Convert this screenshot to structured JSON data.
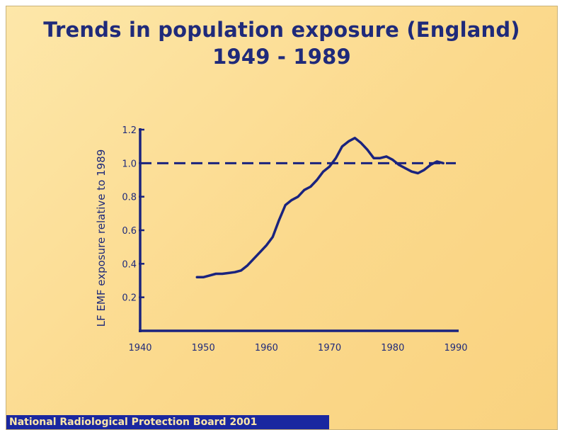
{
  "slide": {
    "title_line1": "Trends in population exposure (England)",
    "title_line2": "1949 - 1989",
    "footer": "National Radiological Protection Board 2001"
  },
  "chart_data": {
    "type": "line",
    "title": "Trends in population exposure (England) 1949 - 1989",
    "xlabel": "",
    "ylabel": "LF EMF exposure relative to 1989",
    "xlim": [
      1940,
      1990
    ],
    "ylim": [
      0,
      1.2
    ],
    "xticks": [
      1940,
      1950,
      1960,
      1970,
      1980,
      1990
    ],
    "yticks": [
      0.2,
      0.4,
      0.6,
      0.8,
      1.0,
      1.2
    ],
    "ytick_labels": [
      "0.2",
      "0.4",
      "0.6",
      "0.8",
      "1.0",
      "1.2"
    ],
    "reference_line": {
      "y": 1.0,
      "style": "dashed"
    },
    "grid": false,
    "legend": "none",
    "colors": {
      "line": "#1a237e",
      "text": "#1f2a7a",
      "background": "#fbd98c"
    },
    "series": [
      {
        "x": [
          1949,
          1950,
          1951,
          1952,
          1953,
          1954,
          1955,
          1956,
          1957,
          1958,
          1959,
          1960,
          1961,
          1962,
          1963,
          1964,
          1965,
          1966,
          1967,
          1968,
          1969,
          1970,
          1971,
          1972,
          1973,
          1974,
          1975,
          1976,
          1977,
          1978,
          1979,
          1980,
          1981,
          1982,
          1983,
          1984,
          1985,
          1986,
          1987,
          1988
        ],
        "values": [
          0.32,
          0.32,
          0.33,
          0.34,
          0.34,
          0.345,
          0.35,
          0.36,
          0.39,
          0.43,
          0.47,
          0.51,
          0.56,
          0.66,
          0.75,
          0.78,
          0.8,
          0.84,
          0.86,
          0.9,
          0.95,
          0.98,
          1.03,
          1.1,
          1.13,
          1.15,
          1.12,
          1.08,
          1.03,
          1.03,
          1.04,
          1.02,
          0.99,
          0.97,
          0.95,
          0.94,
          0.96,
          0.99,
          1.01,
          1.0
        ]
      }
    ]
  }
}
